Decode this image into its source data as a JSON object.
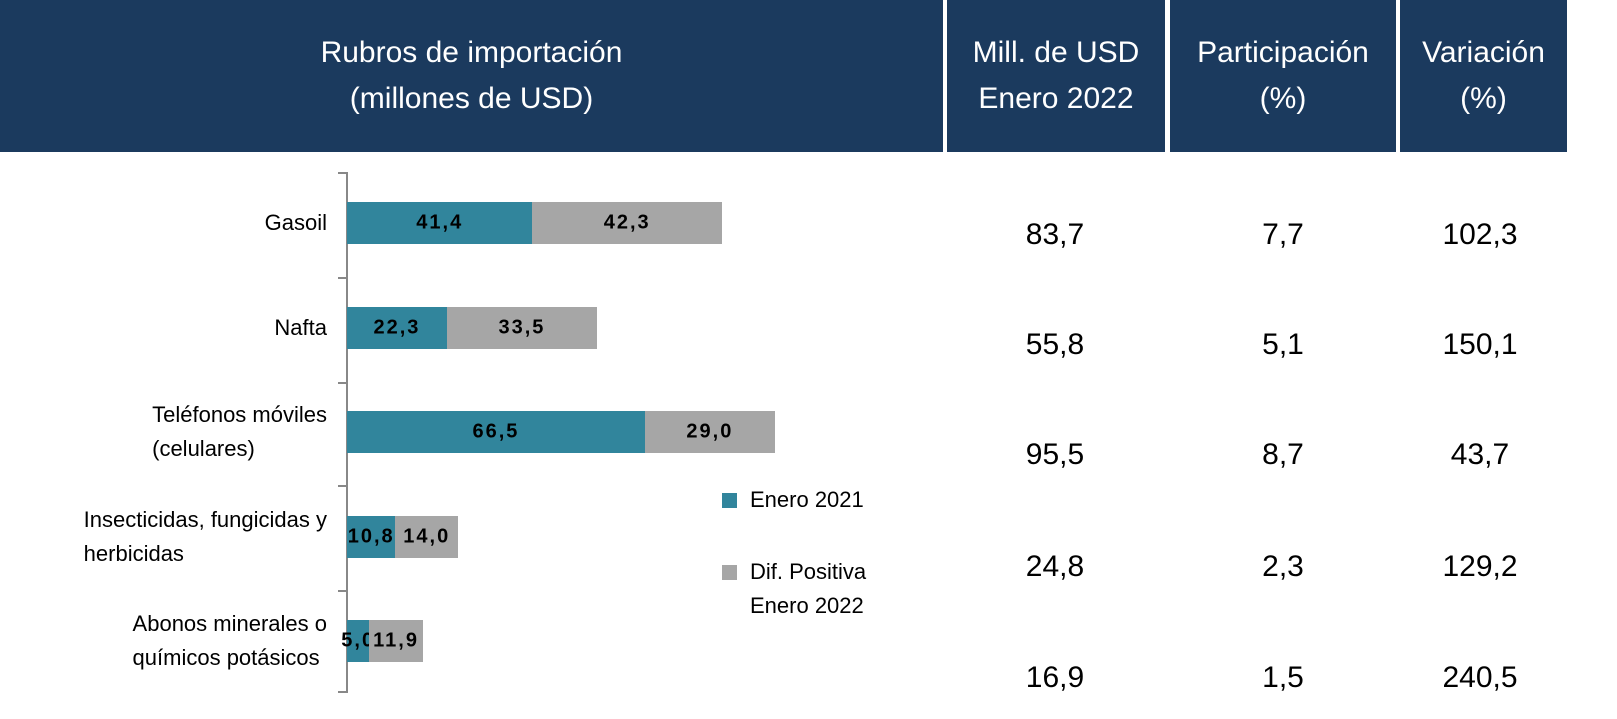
{
  "header": {
    "columns": [
      [
        "Rubros de importación",
        "(millones de USD)"
      ],
      [
        "Mill. de USD",
        "Enero 2022"
      ],
      [
        "Participación",
        "(%)"
      ],
      [
        "Variación",
        "(%)"
      ]
    ]
  },
  "chart_data": {
    "type": "bar",
    "orientation": "horizontal",
    "stacked": true,
    "categories": [
      "Gasoil",
      "Nafta",
      "Teléfonos móviles\n(celulares)",
      "Insecticidas, fungicidas y\nherbicidas",
      "Abonos minerales o\nquímicos potásicos"
    ],
    "series": [
      {
        "name": "Enero 2021",
        "color": "#31859c",
        "values": [
          41.4,
          22.3,
          66.5,
          10.8,
          5.0
        ],
        "value_labels": [
          "41,4",
          "22,3",
          "66,5",
          "10,8",
          "5,0"
        ]
      },
      {
        "name": "Dif. Positiva\nEnero 2022",
        "color": "#a6a6a6",
        "values": [
          42.3,
          33.5,
          29.0,
          14.0,
          11.9
        ],
        "value_labels": [
          "42,3",
          "33,5",
          "29,0",
          "14,0",
          "11,9"
        ]
      }
    ],
    "xlim": [
      0,
      100
    ]
  },
  "table": {
    "rows": [
      [
        "83,7",
        "7,7",
        "102,3"
      ],
      [
        "55,8",
        "5,1",
        "150,1"
      ],
      [
        "95,5",
        "8,7",
        "43,7"
      ],
      [
        "24,8",
        "2,3",
        "129,2"
      ],
      [
        "16,9",
        "1,5",
        "240,5"
      ]
    ]
  }
}
